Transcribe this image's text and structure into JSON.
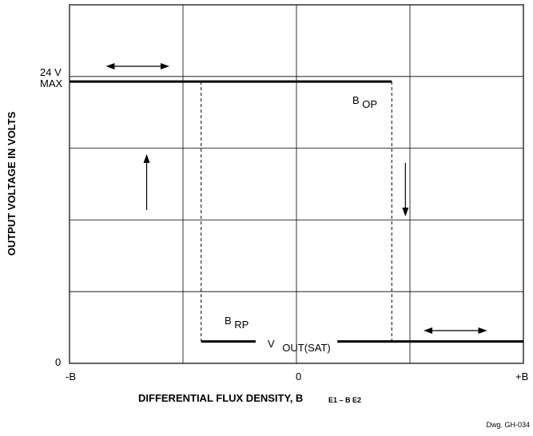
{
  "chart_data": {
    "type": "line",
    "title": "",
    "xlabel": "DIFFERENTIAL FLUX DENSITY, B",
    "xlabel_subscript": "E1 – B E2",
    "ylabel": "OUTPUT VOLTAGE IN VOLTS",
    "x_tick_labels": [
      "-B",
      "0",
      "+B"
    ],
    "y_tick_labels": {
      "top_line1": "24 V",
      "top_line2": "MAX",
      "bottom": "0"
    },
    "x_range": [
      -1,
      1
    ],
    "y_range": [
      0,
      1
    ],
    "grid": true,
    "grid_divisions": {
      "x": 4,
      "y": 5
    },
    "high_level": 0.786,
    "low_level": 0.061,
    "thresholds": {
      "B_RP": -0.42,
      "B_OP": 0.42
    },
    "series": [
      {
        "role": "high-state",
        "x": [
          -1,
          0.42
        ],
        "y": [
          0.786,
          0.786
        ]
      },
      {
        "role": "low-state",
        "x": [
          -0.42,
          1
        ],
        "y": [
          0.061,
          0.061
        ]
      }
    ],
    "annotations": {
      "bop": {
        "base": "B",
        "sub": "OP"
      },
      "brp": {
        "base": "B",
        "sub": "RP"
      },
      "vout": {
        "base": "V",
        "sub": "OUT(SAT)"
      }
    }
  },
  "drawing_id": "Dwg. GH-034"
}
